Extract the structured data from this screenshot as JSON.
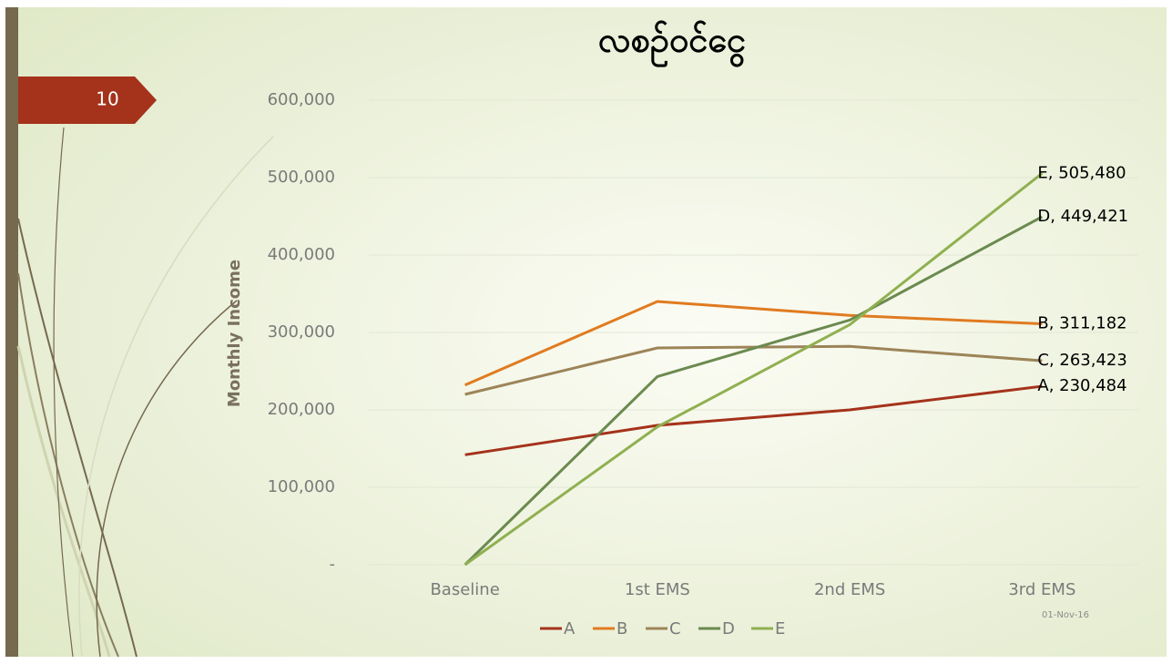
{
  "slide_number": "10",
  "date": "01-Nov-16",
  "chart_data": {
    "type": "line",
    "title": "လစဉ်ဝင်ငွေ",
    "y_label": "Monthly Income",
    "categories": [
      "Baseline",
      "1st EMS",
      "2nd EMS",
      "3rd EMS"
    ],
    "ylim": [
      0,
      600000
    ],
    "yticks": [
      {
        "value": 0,
        "label": "-"
      },
      {
        "value": 100000,
        "label": "100,000"
      },
      {
        "value": 200000,
        "label": "200,000"
      },
      {
        "value": 300000,
        "label": "300,000"
      },
      {
        "value": 400000,
        "label": "400,000"
      },
      {
        "value": 500000,
        "label": "500,000"
      },
      {
        "value": 600000,
        "label": "600,000"
      }
    ],
    "grid": true,
    "legend": "bottom",
    "series": [
      {
        "name": "A",
        "color": "#a5321b",
        "values": [
          142000,
          180000,
          200000,
          230484
        ],
        "value_labels": [
          null,
          null,
          null,
          "A, 230,484"
        ]
      },
      {
        "name": "B",
        "color": "#e07b20",
        "values": [
          232000,
          340000,
          322000,
          311182
        ],
        "value_labels": [
          null,
          null,
          null,
          "B, 311,182"
        ]
      },
      {
        "name": "C",
        "color": "#9c8458",
        "values": [
          220000,
          280000,
          282000,
          263423
        ],
        "value_labels": [
          null,
          null,
          null,
          "C, 263,423"
        ]
      },
      {
        "name": "D",
        "color": "#6b8a4f",
        "values": [
          0,
          243000,
          316000,
          449421
        ],
        "value_labels": [
          null,
          null,
          null,
          "D, 449,421"
        ]
      },
      {
        "name": "E",
        "color": "#8fb050",
        "values": [
          0,
          178000,
          310000,
          505480
        ],
        "value_labels": [
          null,
          null,
          null,
          "E, 505,480"
        ]
      }
    ]
  }
}
